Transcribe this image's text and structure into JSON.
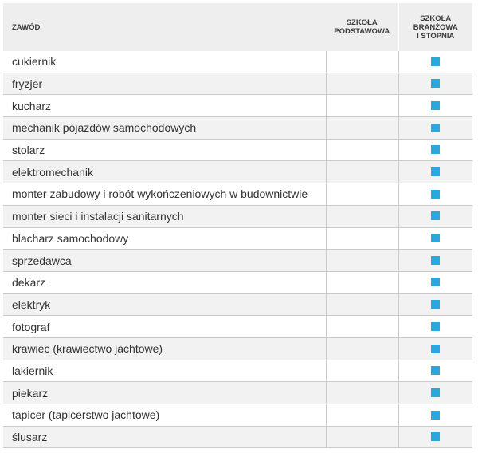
{
  "colors": {
    "marker": "#29a8e0",
    "header_bg": "#eeeeee",
    "row_alt_bg": "#f2f2f2"
  },
  "header": {
    "col_name": "ZAWÓD",
    "col_a": [
      "SZKOŁA",
      "PODSTAWOWA"
    ],
    "col_b": [
      "SZKOŁA",
      "BRANŻOWA",
      "I STOPNIA"
    ]
  },
  "rows": [
    {
      "name": "cukiernik",
      "a": false,
      "b": true
    },
    {
      "name": "fryzjer",
      "a": false,
      "b": true
    },
    {
      "name": "kucharz",
      "a": false,
      "b": true
    },
    {
      "name": "mechanik pojazdów samochodowych",
      "a": false,
      "b": true
    },
    {
      "name": "stolarz",
      "a": false,
      "b": true
    },
    {
      "name": "elektromechanik",
      "a": false,
      "b": true
    },
    {
      "name": "monter zabudowy i robót wykończeniowych w budownictwie",
      "a": false,
      "b": true
    },
    {
      "name": "monter sieci i instalacji sanitarnych",
      "a": false,
      "b": true
    },
    {
      "name": "blacharz samochodowy",
      "a": false,
      "b": true
    },
    {
      "name": "sprzedawca",
      "a": false,
      "b": true
    },
    {
      "name": "dekarz",
      "a": false,
      "b": true
    },
    {
      "name": "elektryk",
      "a": false,
      "b": true
    },
    {
      "name": "fotograf",
      "a": false,
      "b": true
    },
    {
      "name": "krawiec (krawiectwo jachtowe)",
      "a": false,
      "b": true
    },
    {
      "name": "lakiernik",
      "a": false,
      "b": true
    },
    {
      "name": "piekarz",
      "a": false,
      "b": true
    },
    {
      "name": "tapicer (tapicerstwo jachtowe)",
      "a": false,
      "b": true
    },
    {
      "name": "ślusarz",
      "a": false,
      "b": true
    }
  ]
}
